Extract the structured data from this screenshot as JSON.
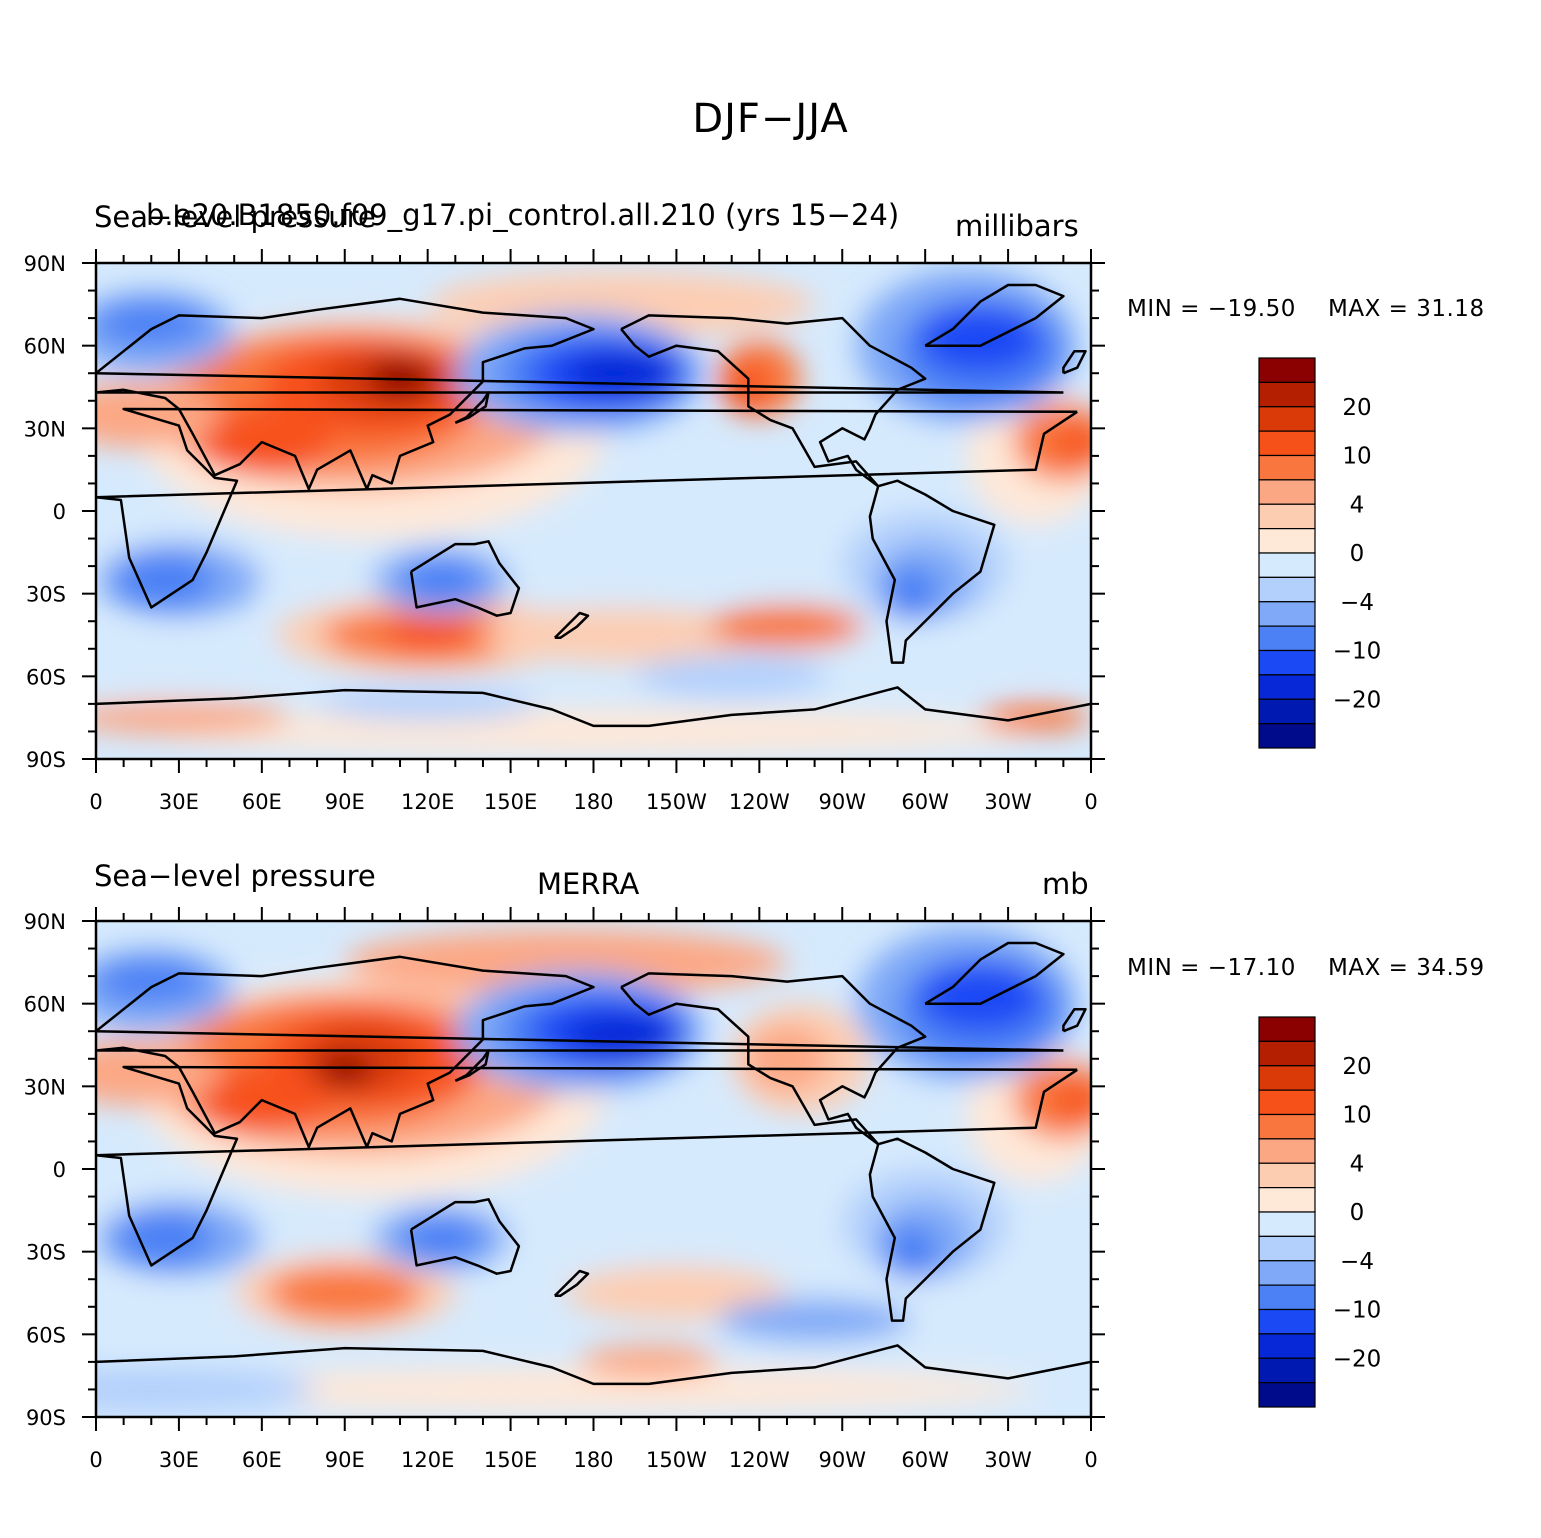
{
  "main_title": "DJF−JJA",
  "lat_ticks": [
    "90N",
    "60N",
    "30N",
    "0",
    "30S",
    "60S",
    "90S"
  ],
  "lon_ticks": [
    "0",
    "30E",
    "60E",
    "90E",
    "120E",
    "150E",
    "180",
    "150W",
    "120W",
    "90W",
    "60W",
    "30W",
    "0"
  ],
  "colorbar_labels": [
    "20",
    "10",
    "4",
    "0",
    "−4",
    "−10",
    "−20"
  ],
  "colorbar_colors": [
    "#8B0000",
    "#B31F00",
    "#D93A08",
    "#F7511A",
    "#F9773E",
    "#FCA784",
    "#FDCDB2",
    "#FEE8D8",
    "#D6EAFD",
    "#B3D0FC",
    "#80AAF7",
    "#4B81F5",
    "#1B4AF5",
    "#0628D7",
    "#0019B0",
    "#000B8B"
  ],
  "panels": [
    {
      "left_title": "Sea−level pressure",
      "center_title": "b.e20.B1850.f09_g17.pi_control.all.210 (yrs 15−24)",
      "right_title": "millibars",
      "min_text": "MIN = −19.50",
      "max_text": "MAX =   31.18",
      "min": -19.5,
      "max": 31.18
    },
    {
      "left_title": "Sea−level pressure",
      "center_title": "MERRA",
      "right_title": "mb",
      "min_text": "MIN = −17.10",
      "max_text": "MAX =   34.59",
      "min": -17.1,
      "max": 34.59
    }
  ],
  "chart_data": {
    "type": "heatmap",
    "title": "DJF−JJA",
    "variable": "Sea−level pressure",
    "levels": [
      -25,
      -20,
      -15,
      -10,
      -6,
      -4,
      -2,
      0,
      2,
      4,
      6,
      10,
      15,
      20,
      25
    ],
    "x": [
      "0",
      "30E",
      "60E",
      "90E",
      "120E",
      "150E",
      "180",
      "150W",
      "120W",
      "90W",
      "60W",
      "30W",
      "0"
    ],
    "y": [
      "90N",
      "60N",
      "30N",
      "0",
      "30S",
      "60S",
      "90S"
    ],
    "xlim": [
      0,
      360
    ],
    "ylim": [
      -90,
      90
    ],
    "series": [
      {
        "name": "b.e20.B1850.f09_g17.pi_control.all.210 (yrs 15−24)",
        "min": -19.5,
        "max": 31.18
      },
      {
        "name": "MERRA",
        "min": -17.1,
        "max": 34.59
      }
    ]
  }
}
